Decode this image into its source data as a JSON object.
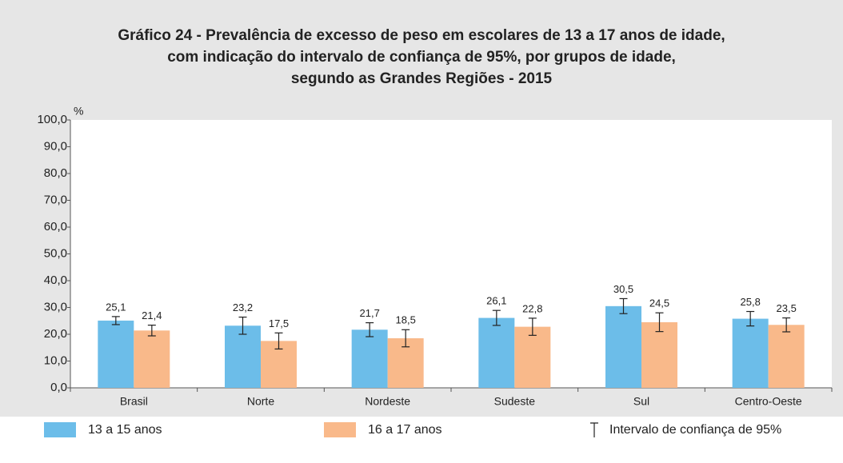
{
  "chart_data": {
    "type": "bar",
    "title": [
      "Gráfico 24 - Prevalência de excesso de peso em escolares de 13 a 17 anos de idade,",
      "com indicação do intervalo de confiança de 95%, por grupos de idade,",
      "segundo as Grandes Regiões - 2015"
    ],
    "y_label": "%",
    "categories": [
      "Brasil",
      "Norte",
      "Nordeste",
      "Sudeste",
      "Sul",
      "Centro-Oeste"
    ],
    "series": [
      {
        "name": "13 a 15 anos",
        "color": "#6cbde9",
        "values": [
          25.1,
          23.2,
          21.7,
          26.1,
          30.5,
          25.8
        ],
        "value_labels": [
          "25,1",
          "23,2",
          "21,7",
          "26,1",
          "30,5",
          "25,8"
        ],
        "errors": [
          1.5,
          3.2,
          2.6,
          2.8,
          2.8,
          2.7
        ]
      },
      {
        "name": "16 a 17 anos",
        "color": "#f9b98a",
        "values": [
          21.4,
          17.5,
          18.5,
          22.8,
          24.5,
          23.5
        ],
        "value_labels": [
          "21,4",
          "17,5",
          "18,5",
          "22,8",
          "24,5",
          "23,5"
        ],
        "errors": [
          2.0,
          3.0,
          3.2,
          3.2,
          3.5,
          2.6
        ]
      }
    ],
    "error_label": "Intervalo de confiança de 95%",
    "ylim": [
      0,
      100
    ],
    "yticks": [
      {
        "value": 0,
        "label": "0,0"
      },
      {
        "value": 10,
        "label": "10,0"
      },
      {
        "value": 20,
        "label": "20,0"
      },
      {
        "value": 30,
        "label": "30,0"
      },
      {
        "value": 40,
        "label": "40,0"
      },
      {
        "value": 50,
        "label": "50,0"
      },
      {
        "value": 60,
        "label": "60,0"
      },
      {
        "value": 70,
        "label": "70,0"
      },
      {
        "value": 80,
        "label": "80,0"
      },
      {
        "value": 90,
        "label": "90,0"
      },
      {
        "value": 100,
        "label": "100,0"
      }
    ],
    "grid": false
  }
}
